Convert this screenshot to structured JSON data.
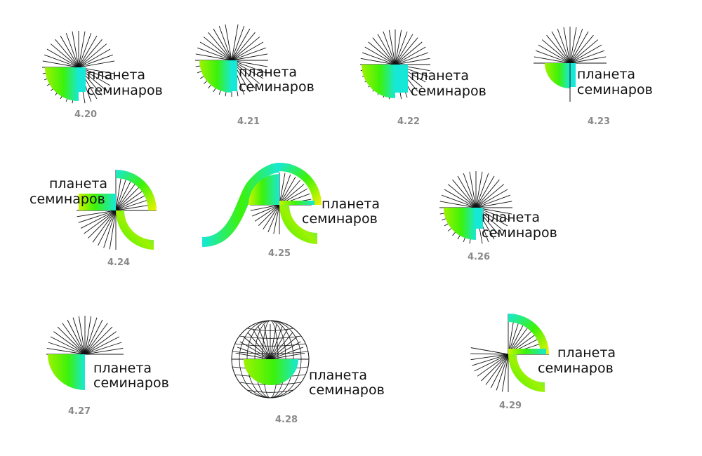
{
  "wordmark": {
    "line1": "планета",
    "line2": "семинаров"
  },
  "colors": {
    "cyan": "#16E8D8",
    "green": "#3CF20A",
    "lime": "#9EF200",
    "yellow": "#F2F200",
    "ink": "#111111",
    "caption": "#8A8A8A"
  },
  "variants": [
    {
      "id": "4.20",
      "label": "4.20"
    },
    {
      "id": "4.21",
      "label": "4.21"
    },
    {
      "id": "4.22",
      "label": "4.22"
    },
    {
      "id": "4.23",
      "label": "4.23"
    },
    {
      "id": "4.24",
      "label": "4.24"
    },
    {
      "id": "4.25",
      "label": "4.25"
    },
    {
      "id": "4.26",
      "label": "4.26"
    },
    {
      "id": "4.27",
      "label": "4.27"
    },
    {
      "id": "4.28",
      "label": "4.28"
    },
    {
      "id": "4.29",
      "label": "4.29"
    }
  ]
}
